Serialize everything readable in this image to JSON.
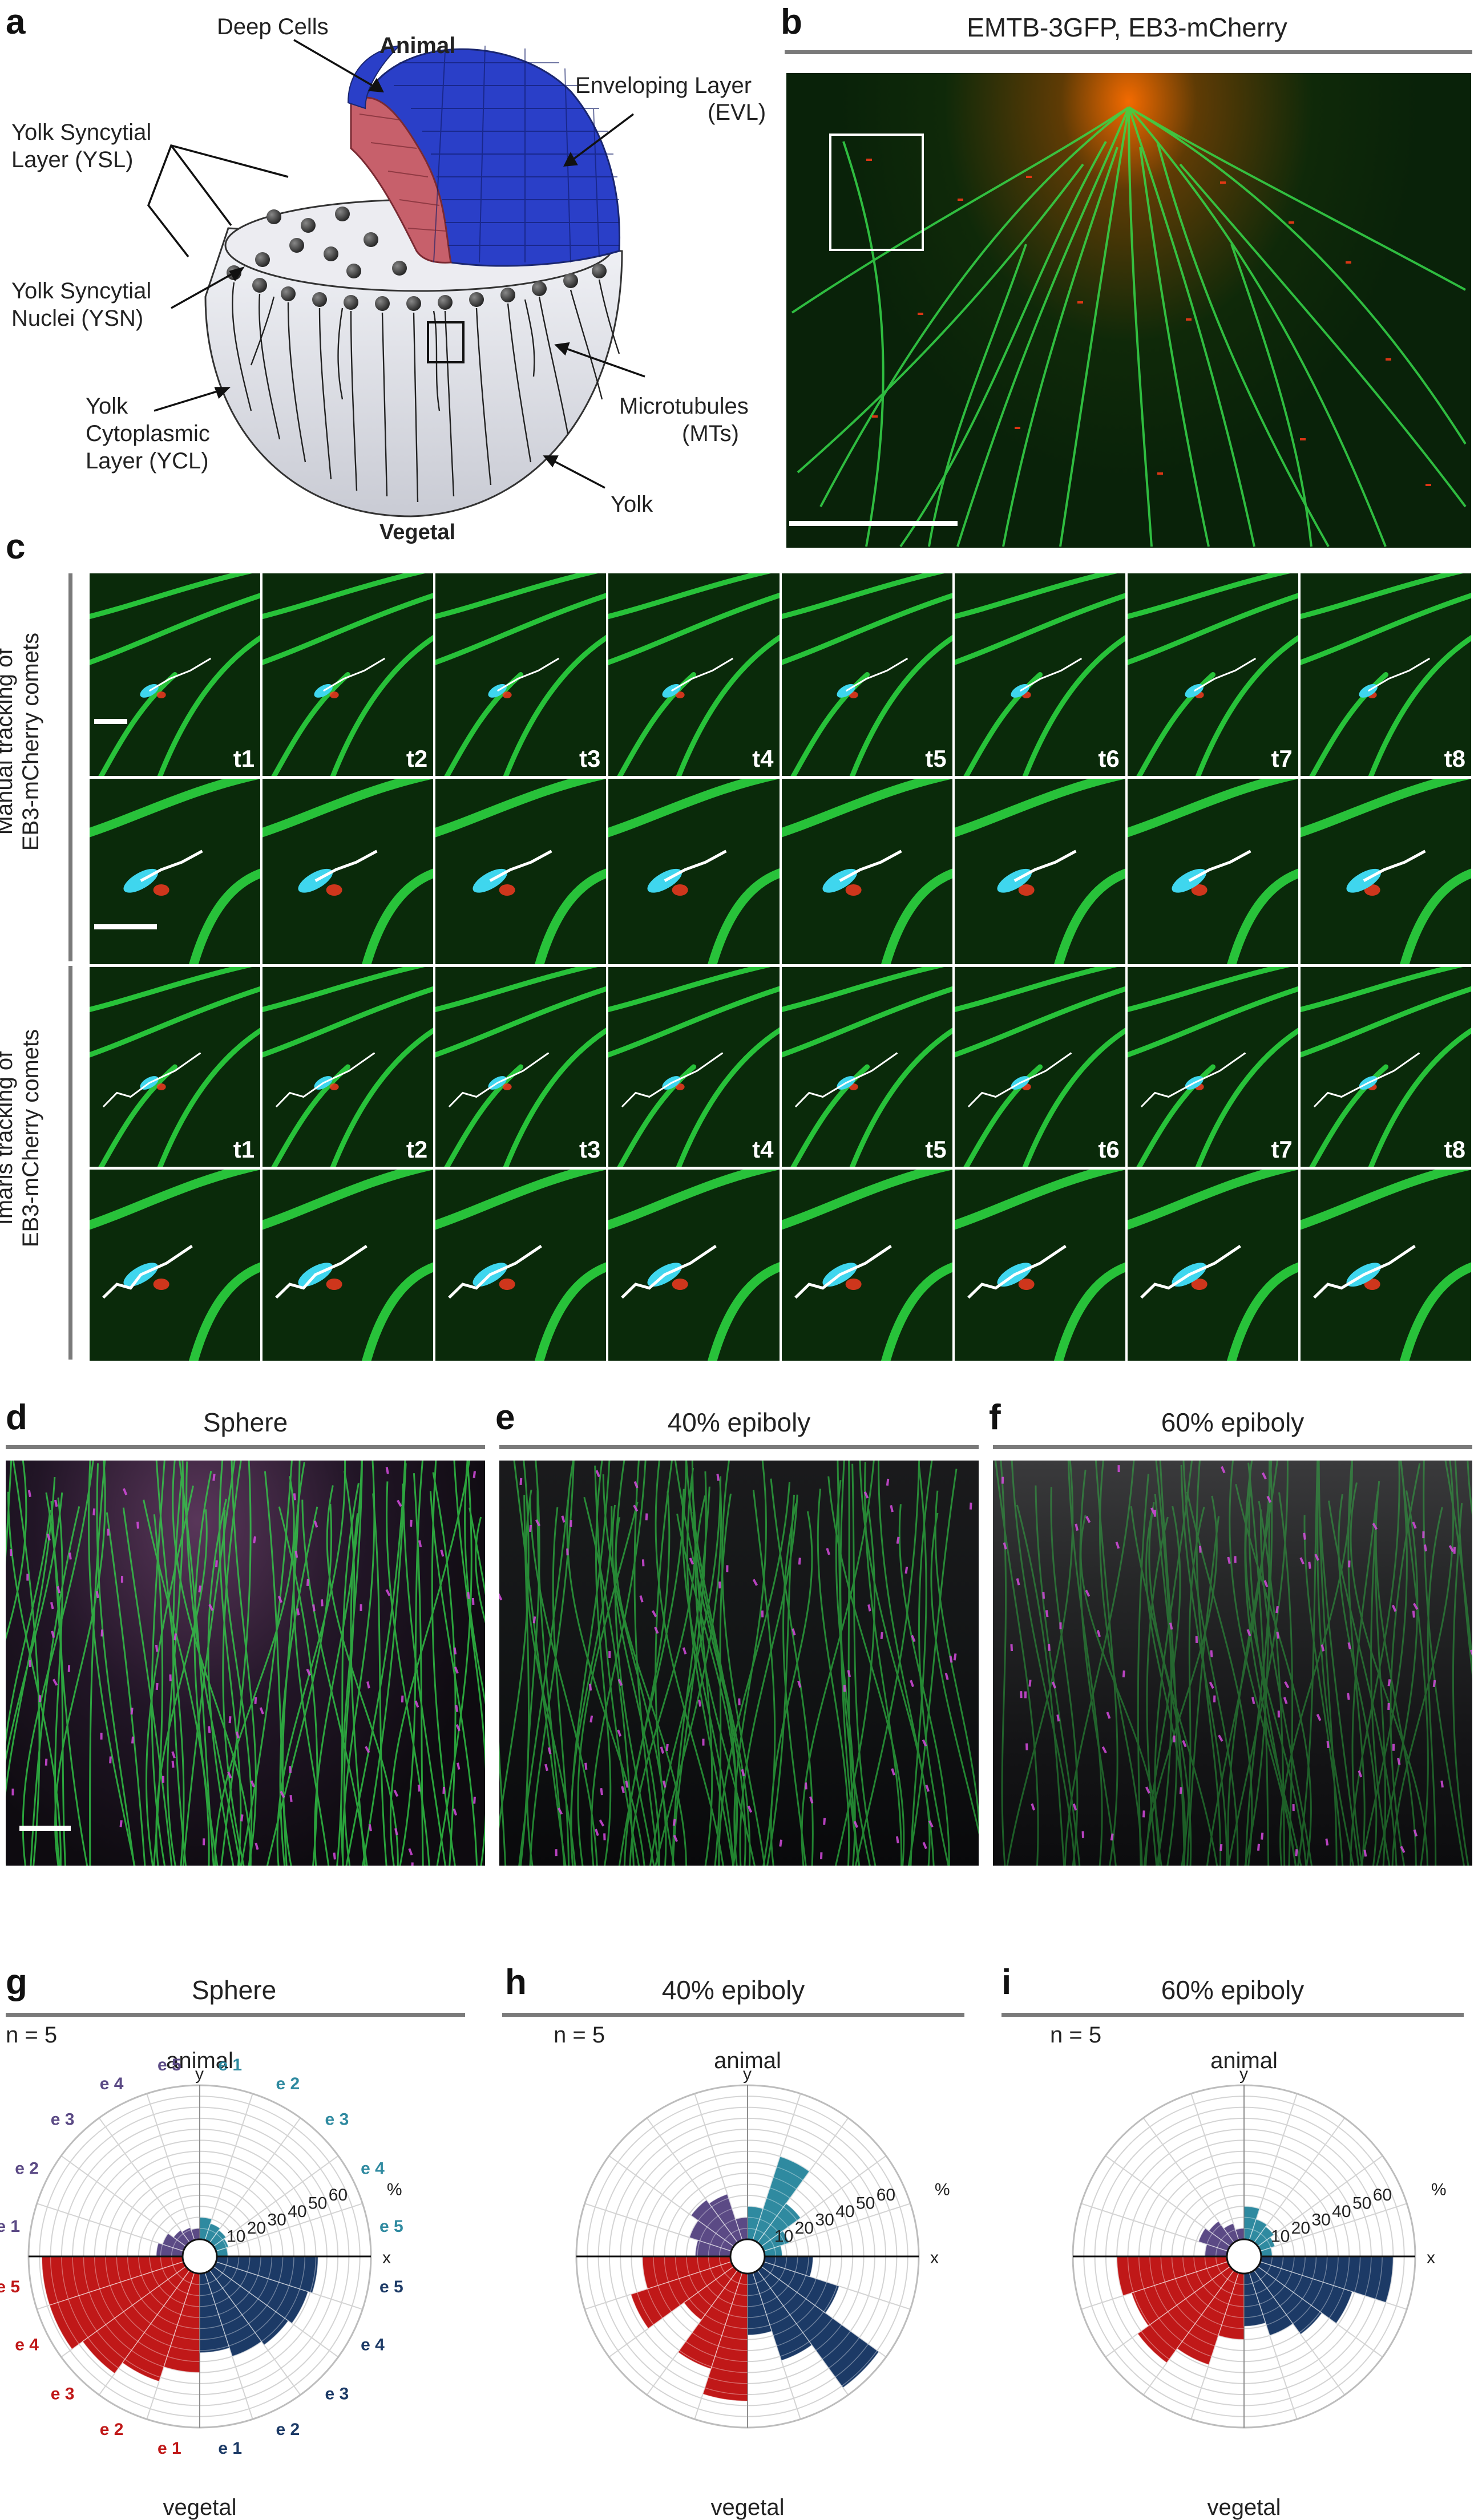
{
  "panel_letters": [
    "a",
    "b",
    "c",
    "d",
    "e",
    "f",
    "g",
    "h",
    "i"
  ],
  "panel_a": {
    "deep_cells": "Deep Cells",
    "animal": "Animal",
    "evl_line1": "Enveloping Layer",
    "evl_line2": "(EVL)",
    "ysl_line1": "Yolk Syncytial",
    "ysl_line2": "Layer (YSL)",
    "ysn_line1": "Yolk Syncytial",
    "ysn_line2": "Nuclei (YSN)",
    "ycl_line1": "Yolk",
    "ycl_line2": "Cytoplasmic",
    "ycl_line3": "Layer (YCL)",
    "mts_line1": "Microtubules",
    "mts_line2": "(MTs)",
    "yolk": "Yolk",
    "vegetal": "Vegetal"
  },
  "panel_b": {
    "title": "EMTB-3GFP, EB3-mCherry"
  },
  "panel_c": {
    "manual_line1": "Manual tracking of",
    "manual_line2": "EB3-mCherry comets",
    "imaris_line1": "Imaris tracking of",
    "imaris_line2": "EB3-mCherry comets",
    "frames": [
      "t1",
      "t2",
      "t3",
      "t4",
      "t5",
      "t6",
      "t7",
      "t8"
    ]
  },
  "panel_def": {
    "d": "Sphere",
    "e": "40% epiboly",
    "f": "60% epiboly"
  },
  "polar_common": {
    "n": "n = 5",
    "animal": "animal",
    "vegetal": "vegetal",
    "y": "y",
    "x": "x",
    "percent": "%",
    "ticks": [
      "10",
      "20",
      "30",
      "40",
      "50",
      "60"
    ],
    "colors": {
      "q1": "#2f8aa0",
      "q2": "#5b4a85",
      "q3": "#c01818",
      "q4": "#1c3a66"
    }
  },
  "chart_data": [
    {
      "type": "polar-bar",
      "title": "Sphere",
      "rmax": 70,
      "sector_labels": {
        "q1": [
          "e 1",
          "e 2",
          "e 3",
          "e 4",
          "e 5"
        ],
        "q2": [
          "e 5",
          "e 4",
          "e 3",
          "e 2",
          "e 1"
        ],
        "q3": [
          "e 5",
          "e 4",
          "e 3",
          "e 2",
          "e 1"
        ],
        "q4": [
          "e 1",
          "e 2",
          "e 3",
          "e 4",
          "e 5"
        ]
      },
      "series": [
        {
          "name": "q1",
          "values": [
            10,
            8,
            7,
            6,
            5
          ]
        },
        {
          "name": "q2",
          "values": [
            5,
            6,
            7,
            10,
            12
          ]
        },
        {
          "name": "q3",
          "values": [
            64,
            64,
            58,
            52,
            45
          ]
        },
        {
          "name": "q4",
          "values": [
            36,
            40,
            42,
            44,
            46
          ]
        }
      ]
    },
    {
      "type": "polar-bar",
      "title": "40% epiboly",
      "rmax": 70,
      "series": [
        {
          "name": "q1",
          "values": [
            15,
            40,
            22,
            12,
            8
          ]
        },
        {
          "name": "q2",
          "values": [
            10,
            22,
            24,
            20,
            16
          ]
        },
        {
          "name": "q3",
          "values": [
            40,
            48,
            28,
            46,
            58
          ]
        },
        {
          "name": "q4",
          "values": [
            28,
            42,
            66,
            36,
            22
          ]
        }
      ]
    },
    {
      "type": "polar-bar",
      "title": "60% epiboly",
      "rmax": 70,
      "series": [
        {
          "name": "q1",
          "values": [
            15,
            10,
            9,
            7,
            5
          ]
        },
        {
          "name": "q2",
          "values": [
            5,
            8,
            12,
            14,
            10
          ]
        },
        {
          "name": "q3",
          "values": [
            50,
            46,
            52,
            44,
            30
          ]
        },
        {
          "name": "q4",
          "values": [
            24,
            30,
            36,
            44,
            60
          ]
        }
      ]
    }
  ]
}
